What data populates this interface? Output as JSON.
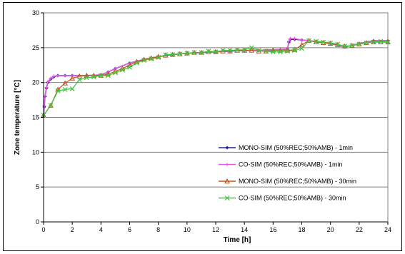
{
  "chart_data": {
    "type": "line",
    "title": "",
    "xlabel": "Time [h]",
    "ylabel": "Zone temperature [°C]",
    "xlim": [
      0,
      24
    ],
    "ylim": [
      0,
      30
    ],
    "xticks": [
      "0",
      "2",
      "4",
      "6",
      "8",
      "10",
      "12",
      "14",
      "16",
      "18",
      "20",
      "22",
      "24"
    ],
    "yticks": [
      "0",
      "5",
      "10",
      "15",
      "20",
      "25",
      "30"
    ],
    "grid": "horizontal",
    "legend_position": "bottom-right inside plot",
    "series": [
      {
        "name": "MONO-SIM (50%REC;50%AMB) - 1min",
        "color": "#1f1fa0",
        "marker": "diamond",
        "x": [
          0,
          0.05,
          0.1,
          0.2,
          0.3,
          0.5,
          0.7,
          1,
          1.5,
          2,
          3,
          4,
          4.5,
          5,
          6,
          7,
          8,
          9,
          10,
          11,
          12,
          13,
          14,
          15,
          16,
          17,
          17.1,
          17.2,
          17.5,
          18,
          19,
          20,
          21,
          22,
          23,
          24
        ],
        "y": [
          15.2,
          16.5,
          18,
          19.2,
          20,
          20.5,
          20.8,
          21,
          21,
          21,
          21,
          21.1,
          21.5,
          22,
          22.8,
          23.3,
          23.7,
          24,
          24.2,
          24.3,
          24.4,
          24.5,
          24.6,
          24.6,
          24.7,
          24.8,
          25.8,
          26.2,
          26.2,
          26.1,
          25.9,
          25.6,
          25.1,
          25.6,
          26,
          26
        ]
      },
      {
        "name": "CO-SIM (50%REC;50%AMB) - 1min",
        "color": "#e05ce0",
        "marker": "plus",
        "x": [
          0,
          0.05,
          0.1,
          0.2,
          0.3,
          0.5,
          0.7,
          1,
          1.5,
          2,
          3,
          4,
          4.5,
          5,
          6,
          7,
          8,
          9,
          10,
          11,
          12,
          13,
          14,
          15,
          16,
          17,
          17.1,
          17.2,
          17.5,
          18,
          19,
          20,
          21,
          22,
          23,
          24
        ],
        "y": [
          15.3,
          16.7,
          18.1,
          19.3,
          20.1,
          20.6,
          20.9,
          21,
          21,
          21,
          21,
          21.1,
          21.5,
          22,
          22.8,
          23.3,
          23.7,
          24,
          24.2,
          24.3,
          24.4,
          24.5,
          24.6,
          24.6,
          24.7,
          24.8,
          25.9,
          26.3,
          26.3,
          26.1,
          25.9,
          25.6,
          25.1,
          25.6,
          26,
          26
        ]
      },
      {
        "name": "MONO-SIM (50%REC;50%AMB) - 30min",
        "color": "#c0501c",
        "marker": "triangle",
        "x": [
          0,
          0.5,
          1,
          1.5,
          2,
          2.5,
          3,
          3.5,
          4,
          4.5,
          5,
          5.5,
          6,
          6.5,
          7,
          7.5,
          8,
          8.5,
          9,
          9.5,
          10,
          10.5,
          11,
          11.5,
          12,
          12.5,
          13,
          13.5,
          14,
          14.5,
          15,
          15.5,
          16,
          16.5,
          17,
          17.5,
          18,
          18.5,
          19,
          19.5,
          20,
          20.5,
          21,
          21.5,
          22,
          22.5,
          23,
          23.5,
          24
        ],
        "y": [
          15.3,
          16.7,
          19,
          19.9,
          20.6,
          20.9,
          21,
          21,
          21,
          21.2,
          21.6,
          22,
          22.5,
          23,
          23.3,
          23.5,
          23.7,
          23.9,
          24,
          24.1,
          24.2,
          24.3,
          24.3,
          24.4,
          24.4,
          24.5,
          24.5,
          24.6,
          24.6,
          24.6,
          24.5,
          24.5,
          24.6,
          24.6,
          24.6,
          24.7,
          25.4,
          26,
          25.8,
          25.7,
          25.6,
          25.4,
          25.2,
          25.3,
          25.5,
          25.7,
          25.8,
          25.8,
          25.8
        ]
      },
      {
        "name": "CO-SIM (50%REC;50%AMB) - 30min",
        "color": "#3ec43e",
        "marker": "x",
        "x": [
          0,
          0.5,
          1,
          1.5,
          2,
          2.5,
          3,
          3.5,
          4,
          4.5,
          5,
          5.5,
          6,
          6.5,
          7,
          7.5,
          8,
          8.5,
          9,
          9.5,
          10,
          10.5,
          11,
          11.5,
          12,
          12.5,
          13,
          13.5,
          14,
          14.5,
          15,
          15.5,
          16,
          16.5,
          17,
          17.5,
          18,
          18.5,
          19,
          19.5,
          20,
          20.5,
          21,
          21.5,
          22,
          22.5,
          23,
          23.5,
          24
        ],
        "y": [
          15.3,
          16.7,
          18.8,
          19,
          19.1,
          20.4,
          20.7,
          20.8,
          21,
          21,
          21.4,
          21.8,
          22.2,
          22.8,
          23.2,
          23.4,
          23.6,
          24,
          24,
          24.1,
          24.2,
          24.3,
          24.3,
          24.5,
          24.4,
          24.6,
          24.6,
          24.7,
          24.7,
          25,
          24.6,
          24.5,
          24.4,
          24.4,
          24.5,
          24.6,
          24.9,
          26,
          25.9,
          25.8,
          25.7,
          25.5,
          25.2,
          25.3,
          25.5,
          25.7,
          25.8,
          25.9,
          25.8
        ]
      }
    ]
  }
}
